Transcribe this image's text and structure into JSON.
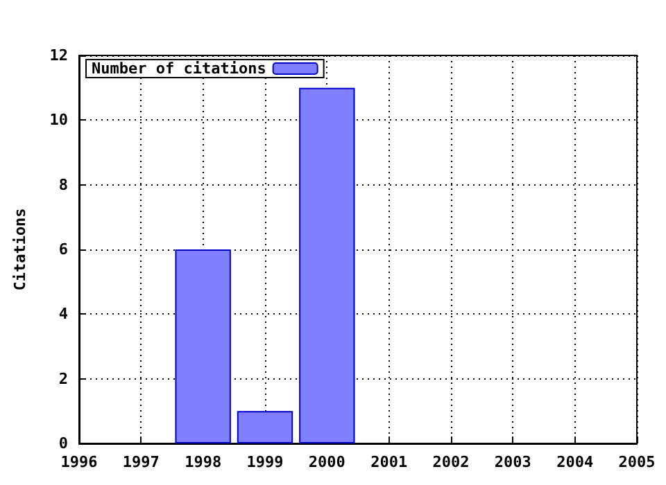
{
  "chart_data": {
    "type": "bar",
    "ylabel": "Citations",
    "x": [
      1998,
      1999,
      2000
    ],
    "series": [
      {
        "name": "Number of citations",
        "color": "#8080ff",
        "values": [
          6,
          1,
          11
        ]
      }
    ],
    "xlim": [
      1996,
      2005
    ],
    "xticks": [
      1996,
      1997,
      1998,
      1999,
      2000,
      2001,
      2002,
      2003,
      2004,
      2005
    ],
    "ylim": [
      0,
      12
    ],
    "yticks": [
      0,
      2,
      4,
      6,
      8,
      10,
      12
    ],
    "grid": true,
    "legend": "top left"
  }
}
